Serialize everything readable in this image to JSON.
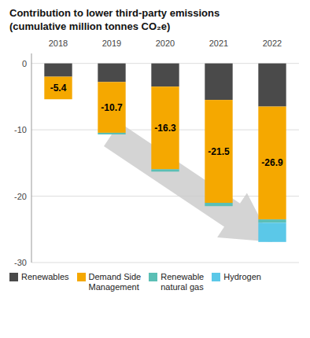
{
  "chart_data": {
    "type": "bar",
    "stacked": true,
    "title": "Contribution to lower third-party emissions",
    "subtitle": "(cumulative million tonnes CO₂e)",
    "categories": [
      "2018",
      "2019",
      "2020",
      "2021",
      "2022"
    ],
    "series": [
      {
        "name": "Renewables",
        "color": "#4a4a4a",
        "values": [
          -2.0,
          -2.8,
          -3.5,
          -5.5,
          -6.5
        ]
      },
      {
        "name": "Demand Side\nManagement",
        "color": "#f5a800",
        "values": [
          -3.4,
          -7.65,
          -12.45,
          -15.5,
          -17.0
        ]
      },
      {
        "name": "Renewable\nnatural gas",
        "color": "#5bbfb5",
        "values": [
          0.0,
          -0.25,
          -0.35,
          -0.5,
          -0.5
        ]
      },
      {
        "name": "Hydrogen",
        "color": "#5bc8e8",
        "values": [
          0.0,
          0.0,
          0.0,
          0.0,
          -2.9
        ]
      }
    ],
    "totals": [
      -5.4,
      -10.7,
      -16.3,
      -21.5,
      -26.9
    ],
    "ylim": [
      -30,
      1.5
    ],
    "yticks": [
      0,
      -10,
      -20,
      -30
    ],
    "grid": true,
    "legend": "bottom"
  }
}
